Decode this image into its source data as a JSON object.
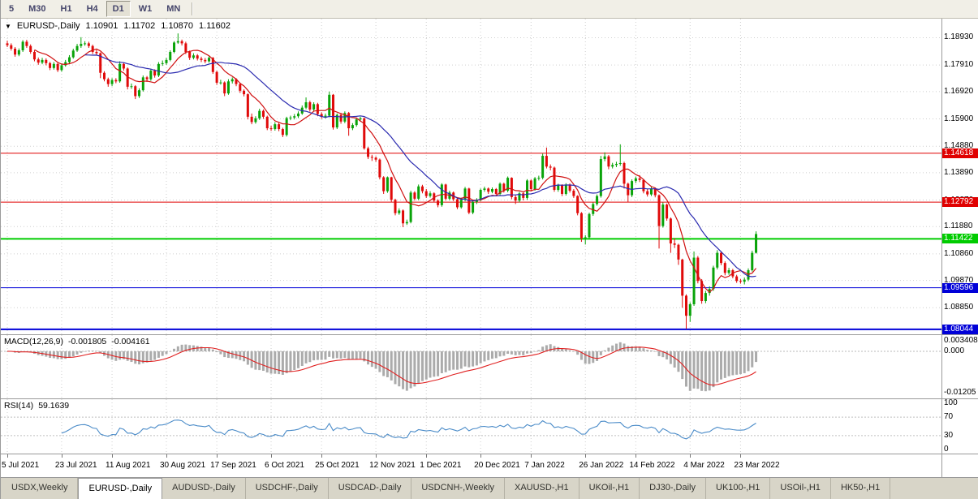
{
  "toolbar": {
    "timeframes": [
      {
        "label": "5",
        "active": false
      },
      {
        "label": "M30",
        "active": false
      },
      {
        "label": "H1",
        "active": false
      },
      {
        "label": "H4",
        "active": false
      },
      {
        "label": "D1",
        "active": true
      },
      {
        "label": "W1",
        "active": false
      },
      {
        "label": "MN",
        "active": false
      }
    ]
  },
  "chart_header": {
    "collapse_icon": "▼",
    "symbol": "EURUSD-,Daily",
    "open": "1.10901",
    "high": "1.11702",
    "low": "1.10870",
    "close": "1.11602"
  },
  "macd_panel": {
    "title": "MACD(12,26,9)",
    "main_value": "-0.001805",
    "signal_value": "-0.004161",
    "axis_top": "0.003408",
    "axis_zero": "0.000",
    "axis_bottom": "-0.01205"
  },
  "rsi_panel": {
    "title": "RSI(14)",
    "value": "59.1639",
    "axis_labels": [
      "100",
      "70",
      "30",
      "0"
    ]
  },
  "tabbar": {
    "tabs": [
      {
        "label": "USDX,Weekly",
        "active": false
      },
      {
        "label": "EURUSD-,Daily",
        "active": true
      },
      {
        "label": "AUDUSD-,Daily",
        "active": false
      },
      {
        "label": "USDCHF-,Daily",
        "active": false
      },
      {
        "label": "USDCAD-,Daily",
        "active": false
      },
      {
        "label": "USDCNH-,Weekly",
        "active": false
      },
      {
        "label": "XAUUSD-,H1",
        "active": false
      },
      {
        "label": "UKOil-,H1",
        "active": false
      },
      {
        "label": "DJ30-,Daily",
        "active": false
      },
      {
        "label": "UK100-,H1",
        "active": false
      },
      {
        "label": "USOil-,H1",
        "active": false
      },
      {
        "label": "HK50-,H1",
        "active": false
      }
    ]
  },
  "chart_data": {
    "type": "candlestick",
    "symbol": "EURUSD-,Daily",
    "timeframe": "D1",
    "y_domain": [
      1.0798,
      1.1952
    ],
    "y_axis_labels": [
      "1.18930",
      "1.17910",
      "1.16920",
      "1.15900",
      "1.14880",
      "1.13890",
      "1.12870",
      "1.11880",
      "1.10860",
      "1.09870",
      "1.08850"
    ],
    "x_ticks": [
      {
        "label": "5 Jul 2021",
        "index": 0
      },
      {
        "label": "23 Jul 2021",
        "index": 14
      },
      {
        "label": "11 Aug 2021",
        "index": 27
      },
      {
        "label": "30 Aug 2021",
        "index": 41
      },
      {
        "label": "17 Sep 2021",
        "index": 54
      },
      {
        "label": "6 Oct 2021",
        "index": 68
      },
      {
        "label": "25 Oct 2021",
        "index": 81
      },
      {
        "label": "12 Nov 2021",
        "index": 95
      },
      {
        "label": "1 Dec 2021",
        "index": 108
      },
      {
        "label": "20 Dec 2021",
        "index": 122
      },
      {
        "label": "7 Jan 2022",
        "index": 135
      },
      {
        "label": "26 Jan 2022",
        "index": 149
      },
      {
        "label": "14 Feb 2022",
        "index": 162
      },
      {
        "label": "4 Mar 2022",
        "index": 176
      },
      {
        "label": "23 Mar 2022",
        "index": 189
      }
    ],
    "hlines": [
      {
        "price": 1.14618,
        "label": "1.14618",
        "color": "#E00000",
        "width": 1
      },
      {
        "price": 1.12792,
        "label": "1.12792",
        "color": "#E00000",
        "width": 1
      },
      {
        "price": 1.11422,
        "label": "1.11422",
        "color": "#00CC00",
        "width": 2
      },
      {
        "price": 1.09596,
        "label": "1.09596",
        "color": "#0000D8",
        "width": 1
      },
      {
        "price": 1.08044,
        "label": "1.08044",
        "color": "#0000D8",
        "width": 2
      }
    ],
    "colors": {
      "bull": "#09A309",
      "bear": "#E00A0A",
      "grid": "#CFCFCF",
      "ma_fast": "#D01010",
      "ma_slow": "#2B2BB0",
      "macd_hist": "#ABABAB",
      "macd_signal": "#E02020",
      "rsi": "#4A8BC8"
    },
    "moving_average_periods": [
      8,
      21
    ],
    "macd_params": {
      "fast": 12,
      "slow": 26,
      "signal": 9
    },
    "rsi_params": {
      "period": 14,
      "levels": [
        70,
        30
      ]
    },
    "candles": [
      [
        1.1872,
        1.1882,
        1.1858,
        1.1865
      ],
      [
        1.1865,
        1.1872,
        1.1845,
        1.1852
      ],
      [
        1.1852,
        1.1858,
        1.1822,
        1.183
      ],
      [
        1.183,
        1.1853,
        1.1824,
        1.1846
      ],
      [
        1.1846,
        1.1884,
        1.184,
        1.1878
      ],
      [
        1.1878,
        1.1885,
        1.1855,
        1.1862
      ],
      [
        1.1862,
        1.1868,
        1.1833,
        1.184
      ],
      [
        1.184,
        1.1846,
        1.1805,
        1.1812
      ],
      [
        1.1812,
        1.1819,
        1.1792,
        1.18
      ],
      [
        1.18,
        1.1818,
        1.1794,
        1.181
      ],
      [
        1.181,
        1.1816,
        1.179,
        1.1798
      ],
      [
        1.1798,
        1.1803,
        1.1772,
        1.178
      ],
      [
        1.178,
        1.1802,
        1.1774,
        1.1795
      ],
      [
        1.1795,
        1.18,
        1.1765,
        1.1772
      ],
      [
        1.1772,
        1.1797,
        1.1766,
        1.179
      ],
      [
        1.179,
        1.181,
        1.1785,
        1.1802
      ],
      [
        1.1802,
        1.1828,
        1.1797,
        1.182
      ],
      [
        1.182,
        1.1852,
        1.1815,
        1.1845
      ],
      [
        1.1845,
        1.187,
        1.184,
        1.1862
      ],
      [
        1.1862,
        1.1895,
        1.1855,
        1.187
      ],
      [
        1.187,
        1.188,
        1.1863,
        1.1872
      ],
      [
        1.1872,
        1.1878,
        1.1855,
        1.1862
      ],
      [
        1.1862,
        1.1867,
        1.1832,
        1.184
      ],
      [
        1.184,
        1.1848,
        1.1827,
        1.1835
      ],
      [
        1.1835,
        1.1838,
        1.1742,
        1.1762
      ],
      [
        1.1762,
        1.1768,
        1.173,
        1.1738
      ],
      [
        1.1738,
        1.1744,
        1.171,
        1.172
      ],
      [
        1.172,
        1.1742,
        1.1712,
        1.1735
      ],
      [
        1.1735,
        1.1742,
        1.1723,
        1.173
      ],
      [
        1.173,
        1.1805,
        1.1725,
        1.1795
      ],
      [
        1.1795,
        1.18,
        1.177,
        1.1778
      ],
      [
        1.1778,
        1.1782,
        1.17,
        1.171
      ],
      [
        1.171,
        1.1722,
        1.1702,
        1.1712
      ],
      [
        1.1712,
        1.1716,
        1.1664,
        1.1675
      ],
      [
        1.1675,
        1.1704,
        1.1668,
        1.1697
      ],
      [
        1.1697,
        1.1752,
        1.1692,
        1.1745
      ],
      [
        1.1745,
        1.175,
        1.1728,
        1.1738
      ],
      [
        1.1738,
        1.1777,
        1.1732,
        1.177
      ],
      [
        1.177,
        1.1775,
        1.1744,
        1.1752
      ],
      [
        1.1752,
        1.1802,
        1.1746,
        1.1795
      ],
      [
        1.1795,
        1.1808,
        1.1788,
        1.1798
      ],
      [
        1.1798,
        1.1818,
        1.1792,
        1.181
      ],
      [
        1.181,
        1.1846,
        1.1805,
        1.184
      ],
      [
        1.184,
        1.188,
        1.1835,
        1.1875
      ],
      [
        1.1875,
        1.1909,
        1.187,
        1.188
      ],
      [
        1.188,
        1.1886,
        1.1864,
        1.1872
      ],
      [
        1.1872,
        1.1878,
        1.1832,
        1.184
      ],
      [
        1.184,
        1.1845,
        1.181,
        1.1818
      ],
      [
        1.1818,
        1.1835,
        1.1812,
        1.1827
      ],
      [
        1.1827,
        1.1832,
        1.1808,
        1.1815
      ],
      [
        1.1815,
        1.1822,
        1.1802,
        1.181
      ],
      [
        1.181,
        1.1817,
        1.1798,
        1.1805
      ],
      [
        1.1805,
        1.1824,
        1.18,
        1.1818
      ],
      [
        1.1818,
        1.1821,
        1.1758,
        1.1765
      ],
      [
        1.1765,
        1.177,
        1.1717,
        1.1725
      ],
      [
        1.1725,
        1.1736,
        1.1718,
        1.1726
      ],
      [
        1.1726,
        1.173,
        1.1675,
        1.1685
      ],
      [
        1.1685,
        1.1738,
        1.168,
        1.173
      ],
      [
        1.173,
        1.1745,
        1.1722,
        1.1738
      ],
      [
        1.1738,
        1.1742,
        1.1712,
        1.172
      ],
      [
        1.172,
        1.1725,
        1.1687,
        1.1695
      ],
      [
        1.1695,
        1.17,
        1.1674,
        1.1682
      ],
      [
        1.1682,
        1.1685,
        1.1588,
        1.1598
      ],
      [
        1.1598,
        1.161,
        1.157,
        1.1578
      ],
      [
        1.1578,
        1.16,
        1.1572,
        1.1592
      ],
      [
        1.1592,
        1.1628,
        1.1586,
        1.162
      ],
      [
        1.162,
        1.1625,
        1.159,
        1.1598
      ],
      [
        1.1598,
        1.1602,
        1.1548,
        1.1555
      ],
      [
        1.1555,
        1.1565,
        1.1545,
        1.1552
      ],
      [
        1.1552,
        1.1578,
        1.1546,
        1.157
      ],
      [
        1.157,
        1.1575,
        1.1544,
        1.1552
      ],
      [
        1.1552,
        1.1557,
        1.1522,
        1.153
      ],
      [
        1.153,
        1.1598,
        1.1524,
        1.1593
      ],
      [
        1.1593,
        1.1602,
        1.1585,
        1.1595
      ],
      [
        1.1595,
        1.1608,
        1.1588,
        1.16
      ],
      [
        1.16,
        1.1618,
        1.1593,
        1.161
      ],
      [
        1.161,
        1.164,
        1.1605,
        1.1632
      ],
      [
        1.1632,
        1.167,
        1.1626,
        1.1652
      ],
      [
        1.1652,
        1.1658,
        1.1617,
        1.1625
      ],
      [
        1.1625,
        1.1652,
        1.1618,
        1.1645
      ],
      [
        1.1645,
        1.165,
        1.16,
        1.1608
      ],
      [
        1.1608,
        1.1615,
        1.159,
        1.1598
      ],
      [
        1.1598,
        1.161,
        1.1592,
        1.1602
      ],
      [
        1.1602,
        1.1692,
        1.1596,
        1.168
      ],
      [
        1.168,
        1.1683,
        1.155,
        1.1558
      ],
      [
        1.1558,
        1.161,
        1.1552,
        1.1605
      ],
      [
        1.1605,
        1.1612,
        1.1572,
        1.158
      ],
      [
        1.158,
        1.1618,
        1.1574,
        1.1612
      ],
      [
        1.1612,
        1.1616,
        1.1527,
        1.1555
      ],
      [
        1.1555,
        1.1574,
        1.1548,
        1.1567
      ],
      [
        1.1567,
        1.1595,
        1.1561,
        1.1588
      ],
      [
        1.1588,
        1.1598,
        1.158,
        1.1592
      ],
      [
        1.1592,
        1.1595,
        1.1475,
        1.148
      ],
      [
        1.148,
        1.1486,
        1.144,
        1.1448
      ],
      [
        1.1448,
        1.1456,
        1.1433,
        1.1445
      ],
      [
        1.1445,
        1.145,
        1.143,
        1.1438
      ],
      [
        1.1438,
        1.1442,
        1.1364,
        1.1372
      ],
      [
        1.1372,
        1.1376,
        1.131,
        1.132
      ],
      [
        1.132,
        1.1375,
        1.1314,
        1.1372
      ],
      [
        1.1372,
        1.1374,
        1.128,
        1.1288
      ],
      [
        1.1288,
        1.1292,
        1.123,
        1.1238
      ],
      [
        1.1238,
        1.1256,
        1.1232,
        1.1248
      ],
      [
        1.1248,
        1.1252,
        1.1186,
        1.12
      ],
      [
        1.12,
        1.1214,
        1.1194,
        1.1205
      ],
      [
        1.1205,
        1.1322,
        1.12,
        1.1315
      ],
      [
        1.1315,
        1.132,
        1.1285,
        1.1292
      ],
      [
        1.1292,
        1.1345,
        1.1286,
        1.1338
      ],
      [
        1.1338,
        1.1344,
        1.1312,
        1.132
      ],
      [
        1.132,
        1.1328,
        1.1295,
        1.1302
      ],
      [
        1.1302,
        1.132,
        1.1296,
        1.1312
      ],
      [
        1.1312,
        1.1316,
        1.1278,
        1.1285
      ],
      [
        1.1285,
        1.129,
        1.126,
        1.1268
      ],
      [
        1.1268,
        1.135,
        1.1262,
        1.1345
      ],
      [
        1.1345,
        1.1348,
        1.1285,
        1.1292
      ],
      [
        1.1292,
        1.1322,
        1.1286,
        1.1315
      ],
      [
        1.1315,
        1.1319,
        1.1283,
        1.129
      ],
      [
        1.129,
        1.1295,
        1.1253,
        1.126
      ],
      [
        1.126,
        1.1296,
        1.1255,
        1.1288
      ],
      [
        1.1288,
        1.1336,
        1.1282,
        1.133
      ],
      [
        1.133,
        1.1333,
        1.1234,
        1.124
      ],
      [
        1.124,
        1.1286,
        1.1234,
        1.128
      ],
      [
        1.128,
        1.1294,
        1.1272,
        1.1288
      ],
      [
        1.1288,
        1.133,
        1.1282,
        1.1325
      ],
      [
        1.1325,
        1.1337,
        1.1318,
        1.133
      ],
      [
        1.133,
        1.1334,
        1.131,
        1.1318
      ],
      [
        1.1318,
        1.1334,
        1.1312,
        1.1328
      ],
      [
        1.1328,
        1.1332,
        1.1303,
        1.131
      ],
      [
        1.131,
        1.1353,
        1.1305,
        1.1348
      ],
      [
        1.1348,
        1.1352,
        1.1315,
        1.1322
      ],
      [
        1.1322,
        1.1375,
        1.1316,
        1.137
      ],
      [
        1.137,
        1.1372,
        1.129,
        1.1298
      ],
      [
        1.1298,
        1.1305,
        1.1272,
        1.1285
      ],
      [
        1.1285,
        1.1318,
        1.1278,
        1.1312
      ],
      [
        1.1312,
        1.1316,
        1.1286,
        1.1295
      ],
      [
        1.1295,
        1.1365,
        1.1288,
        1.136
      ],
      [
        1.136,
        1.1364,
        1.132,
        1.1328
      ],
      [
        1.1328,
        1.1373,
        1.1322,
        1.1368
      ],
      [
        1.1368,
        1.1378,
        1.136,
        1.137
      ],
      [
        1.137,
        1.146,
        1.1364,
        1.1452
      ],
      [
        1.1452,
        1.1483,
        1.1405,
        1.1412
      ],
      [
        1.1412,
        1.142,
        1.1398,
        1.1408
      ],
      [
        1.1408,
        1.1412,
        1.1318,
        1.1325
      ],
      [
        1.1325,
        1.1348,
        1.1318,
        1.1342
      ],
      [
        1.1342,
        1.1346,
        1.1302,
        1.131
      ],
      [
        1.131,
        1.135,
        1.1304,
        1.1345
      ],
      [
        1.1345,
        1.1349,
        1.1315,
        1.1322
      ],
      [
        1.1322,
        1.1328,
        1.1295,
        1.1302
      ],
      [
        1.1302,
        1.1305,
        1.123,
        1.1238
      ],
      [
        1.1238,
        1.1242,
        1.1131,
        1.1145
      ],
      [
        1.1145,
        1.1156,
        1.1121,
        1.1148
      ],
      [
        1.1148,
        1.124,
        1.1142,
        1.1235
      ],
      [
        1.1235,
        1.1278,
        1.1228,
        1.1272
      ],
      [
        1.1272,
        1.1308,
        1.1266,
        1.1302
      ],
      [
        1.1302,
        1.1452,
        1.1296,
        1.144
      ],
      [
        1.144,
        1.1465,
        1.1432,
        1.145
      ],
      [
        1.145,
        1.1455,
        1.1402,
        1.1412
      ],
      [
        1.1412,
        1.1426,
        1.1405,
        1.1418
      ],
      [
        1.1418,
        1.143,
        1.141,
        1.1422
      ],
      [
        1.1422,
        1.1495,
        1.1415,
        1.1425
      ],
      [
        1.1425,
        1.143,
        1.133,
        1.1348
      ],
      [
        1.1348,
        1.1352,
        1.128,
        1.1305
      ],
      [
        1.1305,
        1.1364,
        1.1298,
        1.1358
      ],
      [
        1.1358,
        1.1375,
        1.135,
        1.1368
      ],
      [
        1.1368,
        1.138,
        1.1354,
        1.1362
      ],
      [
        1.1362,
        1.1366,
        1.1312,
        1.132
      ],
      [
        1.132,
        1.1328,
        1.13,
        1.1308
      ],
      [
        1.1308,
        1.1336,
        1.1302,
        1.133
      ],
      [
        1.133,
        1.1334,
        1.1297,
        1.1305
      ],
      [
        1.1305,
        1.1308,
        1.1106,
        1.119
      ],
      [
        1.119,
        1.1278,
        1.1184,
        1.127
      ],
      [
        1.127,
        1.1274,
        1.121,
        1.1218
      ],
      [
        1.1218,
        1.1222,
        1.109,
        1.1125
      ],
      [
        1.1125,
        1.1145,
        1.1108,
        1.112
      ],
      [
        1.112,
        1.1124,
        1.1045,
        1.1065
      ],
      [
        1.1065,
        1.1068,
        1.0885,
        1.093
      ],
      [
        1.093,
        1.0935,
        1.0806,
        1.0855
      ],
      [
        1.0855,
        1.0905,
        1.0832,
        1.0898
      ],
      [
        1.0898,
        1.1095,
        1.0892,
        1.1072
      ],
      [
        1.1072,
        1.1078,
        1.0976,
        1.0985
      ],
      [
        1.0985,
        1.0992,
        1.09,
        1.091
      ],
      [
        1.091,
        1.0948,
        1.0902,
        1.094
      ],
      [
        1.094,
        1.0965,
        1.093,
        1.0955
      ],
      [
        1.0955,
        1.1042,
        1.0948,
        1.1035
      ],
      [
        1.1035,
        1.11,
        1.1028,
        1.109
      ],
      [
        1.109,
        1.1096,
        1.1044,
        1.1052
      ],
      [
        1.1052,
        1.1058,
        1.1006,
        1.1015
      ],
      [
        1.1015,
        1.1034,
        1.1008,
        1.1025
      ],
      [
        1.1025,
        1.103,
        1.0995,
        1.1002
      ],
      [
        1.1002,
        1.1008,
        1.0978,
        1.0985
      ],
      [
        1.0985,
        1.0992,
        1.0975,
        1.0982
      ],
      [
        1.0982,
        1.0998,
        1.0972,
        1.099
      ],
      [
        1.099,
        1.1032,
        1.0984,
        1.1025
      ],
      [
        1.1025,
        1.1098,
        1.102,
        1.109
      ],
      [
        1.10901,
        1.11702,
        1.1087,
        1.11602
      ]
    ]
  }
}
